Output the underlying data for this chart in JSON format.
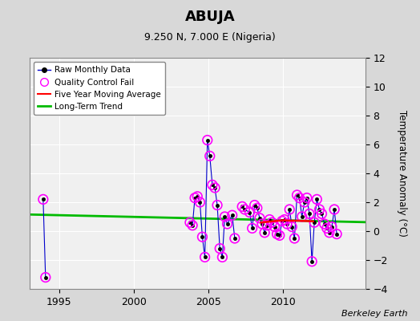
{
  "title": "ABUJA",
  "subtitle": "9.250 N, 7.000 E (Nigeria)",
  "ylabel": "Temperature Anomaly (°C)",
  "credit": "Berkeley Earth",
  "ylim": [
    -4,
    12
  ],
  "yticks": [
    -4,
    -2,
    0,
    2,
    4,
    6,
    8,
    10,
    12
  ],
  "xlim": [
    1993.0,
    2015.5
  ],
  "xticks": [
    1995,
    2000,
    2005,
    2010
  ],
  "bg_color": "#d8d8d8",
  "plot_bg_color": "#f0f0f0",
  "raw_color": "#0000cc",
  "qc_color": "#ff00ff",
  "moving_avg_color": "#ff0000",
  "trend_color": "#00bb00",
  "raw_monthly_x": [
    1993.92,
    1994.08,
    2003.75,
    2003.92,
    2004.08,
    2004.25,
    2004.42,
    2004.58,
    2004.75,
    2004.92,
    2005.08,
    2005.25,
    2005.42,
    2005.58,
    2005.75,
    2005.92,
    2006.08,
    2006.25,
    2006.58,
    2006.75,
    2007.25,
    2007.42,
    2007.75,
    2007.92,
    2008.08,
    2008.25,
    2008.42,
    2008.58,
    2008.75,
    2008.92,
    2009.08,
    2009.25,
    2009.42,
    2009.58,
    2009.75,
    2009.92,
    2010.08,
    2010.25,
    2010.42,
    2010.58,
    2010.75,
    2010.92,
    2011.08,
    2011.25,
    2011.42,
    2011.58,
    2011.75,
    2011.92,
    2012.08,
    2012.25,
    2012.42,
    2012.58,
    2012.75,
    2012.92,
    2013.08,
    2013.25,
    2013.42,
    2013.58
  ],
  "raw_monthly_y": [
    2.2,
    -3.2,
    0.6,
    0.4,
    2.3,
    2.4,
    2.0,
    -0.4,
    -1.8,
    6.3,
    5.2,
    3.2,
    3.0,
    1.8,
    -1.2,
    -1.8,
    1.0,
    0.5,
    1.1,
    -0.5,
    1.7,
    1.5,
    1.3,
    0.2,
    1.8,
    1.6,
    0.9,
    0.5,
    -0.1,
    0.4,
    0.8,
    0.6,
    0.3,
    -0.2,
    -0.3,
    0.7,
    0.8,
    0.5,
    1.5,
    0.3,
    -0.5,
    2.5,
    2.3,
    1.0,
    2.0,
    2.3,
    1.2,
    -2.1,
    0.6,
    2.2,
    1.5,
    1.2,
    0.5,
    0.2,
    -0.1,
    0.3,
    1.5,
    -0.2
  ],
  "qc_fail_x": [
    1993.92,
    1994.08,
    2003.75,
    2003.92,
    2004.08,
    2004.25,
    2004.42,
    2004.58,
    2004.75,
    2004.92,
    2005.08,
    2005.25,
    2005.42,
    2005.58,
    2005.75,
    2005.92,
    2006.08,
    2006.25,
    2006.58,
    2006.75,
    2007.25,
    2007.42,
    2007.75,
    2007.92,
    2008.08,
    2008.25,
    2008.42,
    2008.58,
    2008.75,
    2008.92,
    2009.08,
    2009.25,
    2009.42,
    2009.58,
    2009.75,
    2009.92,
    2010.08,
    2010.25,
    2010.42,
    2010.58,
    2010.75,
    2010.92,
    2011.08,
    2011.25,
    2011.42,
    2011.58,
    2011.75,
    2011.92,
    2012.08,
    2012.25,
    2012.42,
    2012.58,
    2012.75,
    2012.92,
    2013.08,
    2013.25,
    2013.42,
    2013.58
  ],
  "qc_fail_y": [
    2.2,
    -3.2,
    0.6,
    0.4,
    2.3,
    2.4,
    2.0,
    -0.4,
    -1.8,
    6.3,
    5.2,
    3.2,
    3.0,
    1.8,
    -1.2,
    -1.8,
    1.0,
    0.5,
    1.1,
    -0.5,
    1.7,
    1.5,
    1.3,
    0.2,
    1.8,
    1.6,
    0.9,
    0.5,
    -0.1,
    0.4,
    0.8,
    0.6,
    0.3,
    -0.2,
    -0.3,
    0.7,
    0.8,
    0.5,
    1.5,
    0.3,
    -0.5,
    2.5,
    2.3,
    1.0,
    2.0,
    2.3,
    1.2,
    -2.1,
    0.6,
    2.2,
    1.5,
    1.2,
    0.5,
    0.2,
    -0.1,
    0.3,
    1.5,
    -0.2
  ],
  "moving_avg_x": [
    2008.5,
    2009.0,
    2009.5,
    2010.0,
    2010.5,
    2011.0,
    2011.5,
    2012.0
  ],
  "moving_avg_y": [
    0.6,
    0.65,
    0.7,
    0.75,
    0.72,
    0.72,
    0.7,
    0.68
  ],
  "trend_x": [
    1993.0,
    2015.5
  ],
  "trend_y": [
    1.15,
    0.62
  ]
}
